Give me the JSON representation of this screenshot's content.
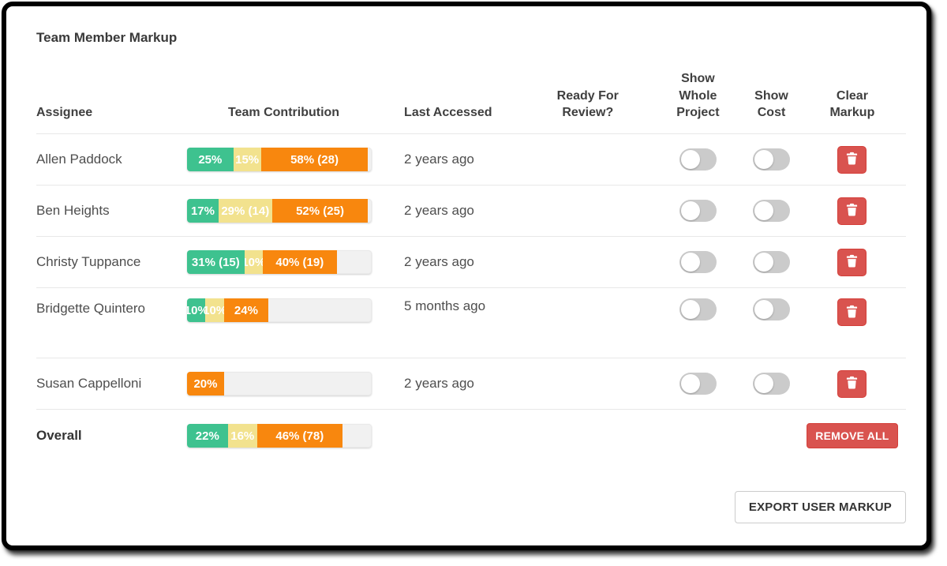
{
  "title": "Team Member Markup",
  "headers": {
    "assignee": "Assignee",
    "contribution": "Team Contribution",
    "last_accessed": "Last Accessed",
    "ready": "Ready For Review?",
    "whole_project": "Show Whole Project",
    "cost": "Show Cost",
    "clear": "Clear Markup"
  },
  "rows": [
    {
      "name": "Allen Paddock",
      "last_accessed": "2 years ago",
      "bar": {
        "green": {
          "label": "25%",
          "pct": 25
        },
        "yellow": {
          "label": "15%",
          "pct": 15
        },
        "orange": {
          "label": "58% (28)",
          "pct": 58
        }
      },
      "toggles": {
        "show_whole_project": "off",
        "show_cost": "off"
      }
    },
    {
      "name": "Ben Heights",
      "last_accessed": "2 years ago",
      "bar": {
        "green": {
          "label": "17%",
          "pct": 17
        },
        "yellow": {
          "label": "29% (14)",
          "pct": 29
        },
        "orange": {
          "label": "52% (25)",
          "pct": 52
        }
      },
      "toggles": {
        "show_whole_project": "off",
        "show_cost": "off"
      }
    },
    {
      "name": "Christy Tuppance",
      "last_accessed": "2 years ago",
      "bar": {
        "green": {
          "label": "31% (15)",
          "pct": 31
        },
        "yellow": {
          "label": "10%",
          "pct": 10
        },
        "orange": {
          "label": "40% (19)",
          "pct": 40
        }
      },
      "toggles": {
        "show_whole_project": "off",
        "show_cost": "off"
      }
    },
    {
      "name": "Bridgette Quintero",
      "last_accessed": "5 months ago",
      "bar": {
        "green": {
          "label": "10%",
          "pct": 10
        },
        "yellow": {
          "label": "10%",
          "pct": 10
        },
        "orange": {
          "label": "24%",
          "pct": 24
        }
      },
      "toggles": {
        "show_whole_project": "off",
        "show_cost": "off"
      }
    },
    {
      "name": "Susan Cappelloni",
      "last_accessed": "2 years ago",
      "bar": {
        "orange": {
          "label": "20%",
          "pct": 20
        }
      },
      "toggles": {
        "show_whole_project": "off",
        "show_cost": "off"
      }
    }
  ],
  "overall": {
    "name": "Overall",
    "bar": {
      "green": {
        "label": "22%",
        "pct": 22
      },
      "yellow": {
        "label": "16%",
        "pct": 16
      },
      "orange": {
        "label": "46% (78)",
        "pct": 46
      }
    },
    "remove_all_label": "REMOVE ALL"
  },
  "footer": {
    "export_label": "EXPORT USER MARKUP"
  },
  "colors": {
    "segment_green": "#3ec28f",
    "segment_yellow": "#f2e28e",
    "segment_orange": "#f8870e",
    "danger_red": "#d9534f",
    "track_gray": "#f1f1f1"
  }
}
